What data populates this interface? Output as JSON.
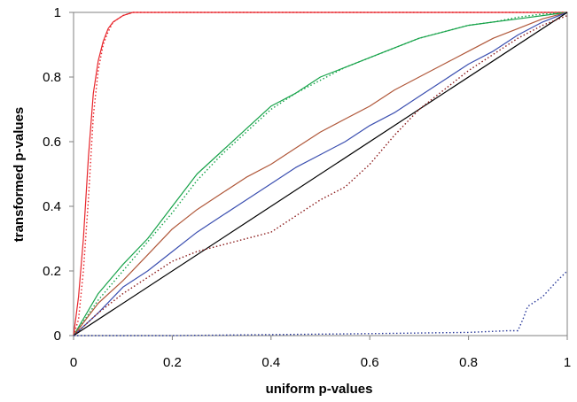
{
  "chart_data": {
    "type": "line",
    "xlabel": "uniform p-values",
    "ylabel": "transformed p-values",
    "xlim": [
      0,
      1
    ],
    "ylim": [
      0,
      1
    ],
    "x_ticks": [
      "0",
      "0.2",
      "0.4",
      "0.6",
      "0.8",
      "1"
    ],
    "y_ticks": [
      "0",
      "0.2",
      "0.4",
      "0.6",
      "0.8",
      "1"
    ],
    "grid": false,
    "legend": "none",
    "colors": {
      "red": "#e8262c",
      "green": "#17a34a",
      "brown": "#b0583a",
      "blue": "#3b4fb0",
      "black": "#000000",
      "dark_red": "#8b1a1a",
      "dark_blue": "#2a3a9a"
    },
    "series": [
      {
        "color": "red",
        "style": "solid",
        "x": [
          0,
          0.01,
          0.02,
          0.03,
          0.04,
          0.05,
          0.06,
          0.07,
          0.08,
          0.1,
          0.12,
          0.15,
          0.2,
          1
        ],
        "y": [
          0,
          0.12,
          0.3,
          0.55,
          0.75,
          0.85,
          0.91,
          0.95,
          0.97,
          0.99,
          1.0,
          1.0,
          1.0,
          1.0
        ]
      },
      {
        "color": "red",
        "style": "dotted",
        "x": [
          0,
          0.01,
          0.02,
          0.03,
          0.04,
          0.05,
          0.06,
          0.07,
          0.08,
          0.1,
          0.12,
          0.15,
          0.2,
          1
        ],
        "y": [
          0,
          0.05,
          0.2,
          0.42,
          0.68,
          0.82,
          0.9,
          0.94,
          0.97,
          0.99,
          1.0,
          1.0,
          1.0,
          1.0
        ]
      },
      {
        "color": "green",
        "style": "solid",
        "x": [
          0,
          0.05,
          0.1,
          0.15,
          0.2,
          0.25,
          0.3,
          0.35,
          0.4,
          0.45,
          0.5,
          0.55,
          0.6,
          0.65,
          0.7,
          0.75,
          0.8,
          0.85,
          0.9,
          0.95,
          1.0
        ],
        "y": [
          0,
          0.13,
          0.22,
          0.3,
          0.4,
          0.5,
          0.57,
          0.64,
          0.71,
          0.75,
          0.8,
          0.83,
          0.86,
          0.89,
          0.92,
          0.94,
          0.96,
          0.97,
          0.98,
          0.99,
          1.0
        ]
      },
      {
        "color": "green",
        "style": "dotted",
        "x": [
          0,
          0.05,
          0.1,
          0.15,
          0.2,
          0.25,
          0.3,
          0.35,
          0.4,
          0.45,
          0.5,
          0.55,
          0.6,
          0.65,
          0.7,
          0.75,
          0.8,
          0.85,
          0.9,
          0.95,
          1.0
        ],
        "y": [
          0,
          0.11,
          0.2,
          0.29,
          0.38,
          0.48,
          0.56,
          0.63,
          0.7,
          0.75,
          0.79,
          0.83,
          0.86,
          0.89,
          0.92,
          0.94,
          0.96,
          0.97,
          0.985,
          0.995,
          1.0
        ]
      },
      {
        "color": "brown",
        "style": "solid",
        "x": [
          0,
          0.05,
          0.1,
          0.15,
          0.2,
          0.25,
          0.3,
          0.35,
          0.4,
          0.45,
          0.5,
          0.55,
          0.6,
          0.65,
          0.7,
          0.75,
          0.8,
          0.85,
          0.9,
          0.95,
          1.0
        ],
        "y": [
          0,
          0.1,
          0.17,
          0.25,
          0.33,
          0.39,
          0.44,
          0.49,
          0.53,
          0.58,
          0.63,
          0.67,
          0.71,
          0.76,
          0.8,
          0.84,
          0.88,
          0.92,
          0.95,
          0.98,
          1.0
        ]
      },
      {
        "color": "blue",
        "style": "solid",
        "x": [
          0,
          0.05,
          0.1,
          0.15,
          0.2,
          0.25,
          0.3,
          0.35,
          0.4,
          0.45,
          0.5,
          0.55,
          0.6,
          0.65,
          0.7,
          0.75,
          0.8,
          0.85,
          0.9,
          0.95,
          1.0
        ],
        "y": [
          0,
          0.07,
          0.15,
          0.2,
          0.26,
          0.32,
          0.37,
          0.42,
          0.47,
          0.52,
          0.56,
          0.6,
          0.65,
          0.69,
          0.74,
          0.79,
          0.84,
          0.88,
          0.93,
          0.97,
          1.0
        ]
      },
      {
        "color": "black",
        "style": "solid",
        "x": [
          0,
          1
        ],
        "y": [
          0,
          1
        ]
      },
      {
        "color": "dark_red",
        "style": "dotted",
        "x": [
          0,
          0.05,
          0.1,
          0.15,
          0.2,
          0.25,
          0.3,
          0.35,
          0.4,
          0.45,
          0.5,
          0.55,
          0.6,
          0.65,
          0.7,
          0.75,
          0.8,
          0.85,
          0.9,
          0.95,
          1.0
        ],
        "y": [
          0,
          0.07,
          0.13,
          0.18,
          0.23,
          0.26,
          0.28,
          0.3,
          0.32,
          0.37,
          0.42,
          0.46,
          0.53,
          0.62,
          0.7,
          0.76,
          0.82,
          0.87,
          0.92,
          0.96,
          0.99
        ]
      },
      {
        "color": "dark_blue",
        "style": "dotted",
        "x": [
          0,
          0.2,
          0.4,
          0.6,
          0.8,
          0.88,
          0.9,
          0.91,
          0.92,
          0.95,
          0.98,
          1.0
        ],
        "y": [
          0,
          0.0,
          0.003,
          0.006,
          0.01,
          0.015,
          0.015,
          0.05,
          0.09,
          0.12,
          0.17,
          0.2
        ]
      }
    ]
  }
}
